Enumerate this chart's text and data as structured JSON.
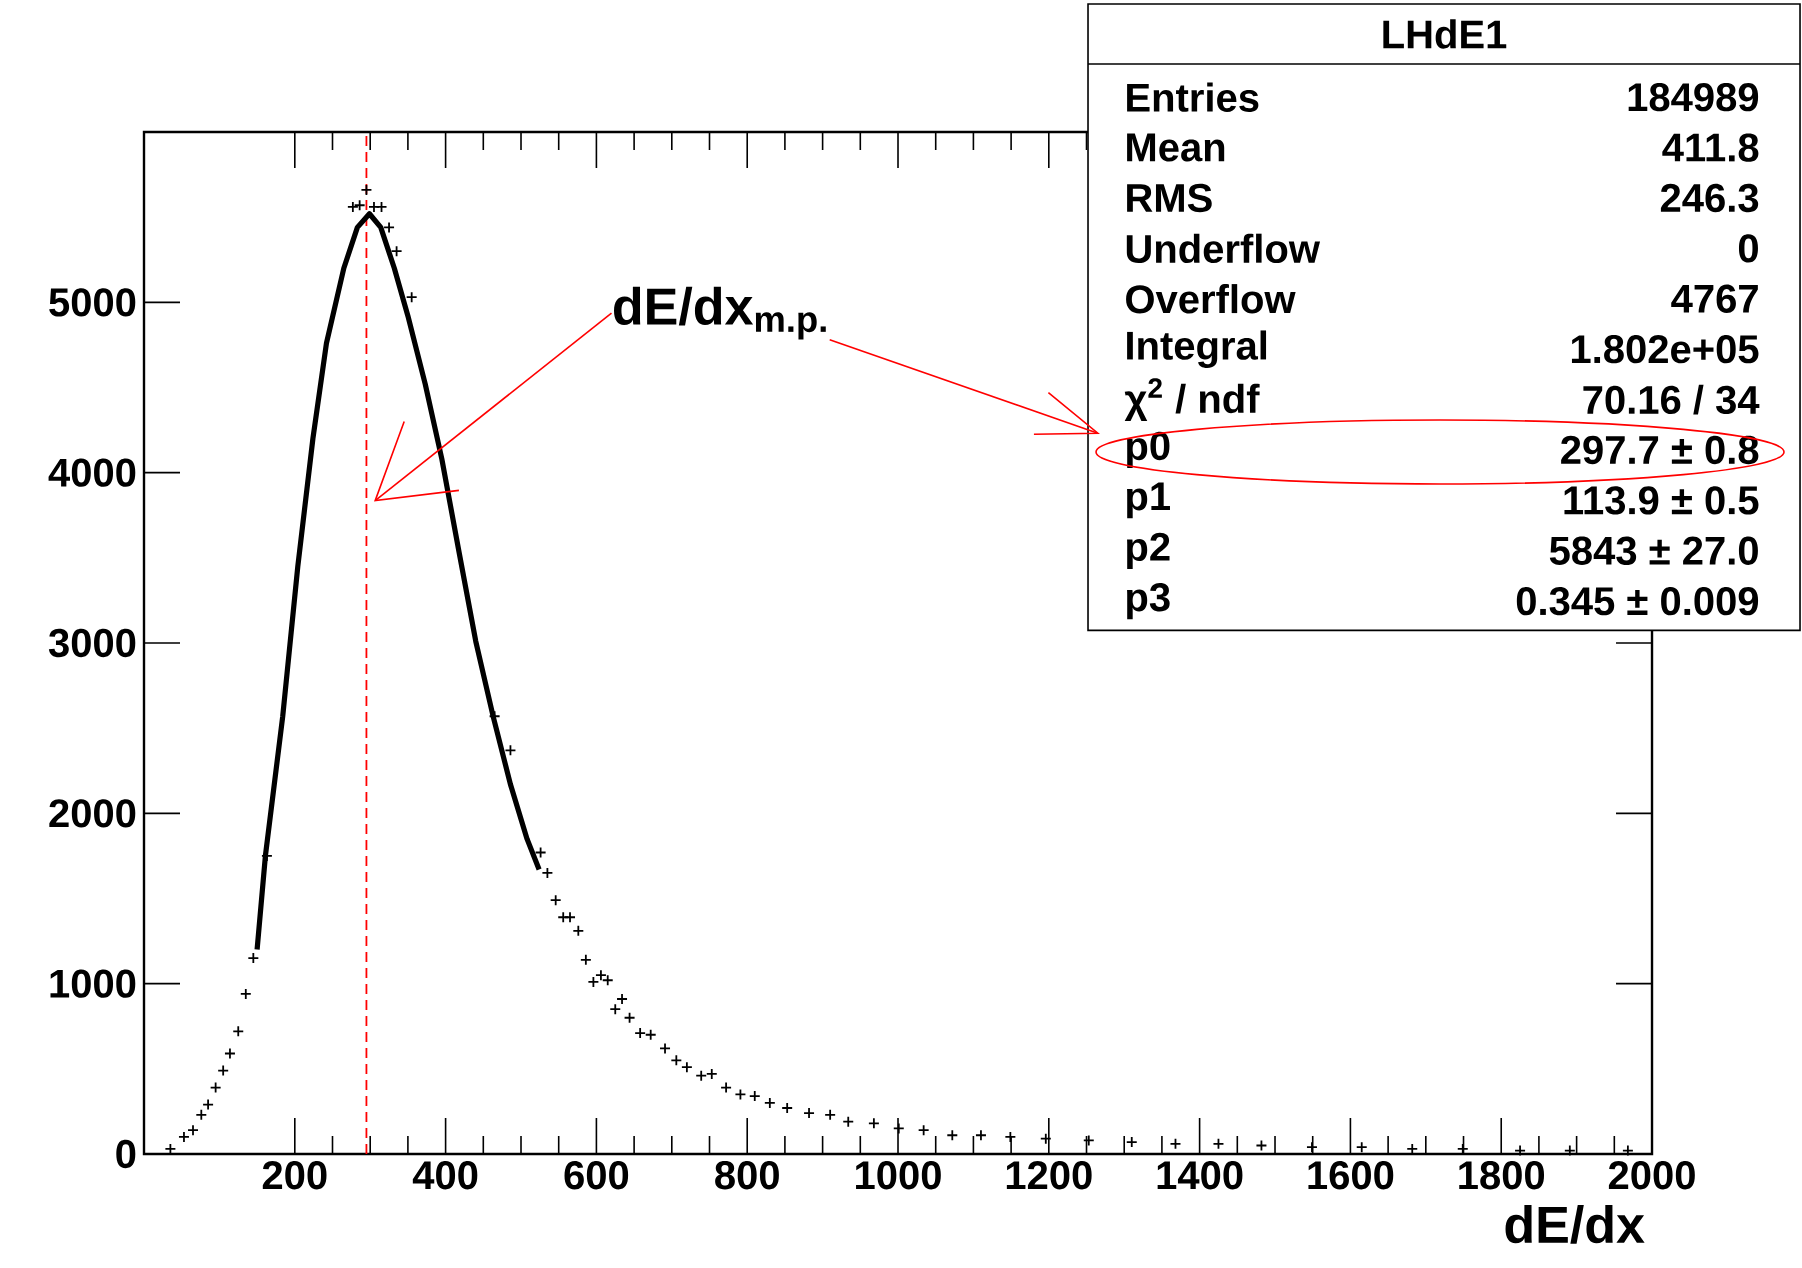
{
  "chart_data": {
    "type": "scatter",
    "xlabel": "dE/dx",
    "xlim": [
      0,
      2000
    ],
    "ylim": [
      0,
      6000
    ],
    "xticks": [
      200,
      400,
      600,
      800,
      1000,
      1200,
      1400,
      1600,
      1800,
      2000
    ],
    "yticks": [
      0,
      1000,
      2000,
      3000,
      4000,
      5000
    ],
    "ref_lines": [
      {
        "axis": "x",
        "value": 295,
        "color": "#ff0000",
        "line_style": "dashed"
      }
    ],
    "series": [
      {
        "color": "#000000",
        "marker": "cross",
        "x": [
          35,
          53,
          65,
          76,
          85,
          95,
          105,
          114,
          125,
          135,
          145,
          154,
          163,
          184,
          193,
          203,
          215,
          225,
          235,
          245,
          256,
          268,
          277,
          286,
          295,
          305,
          315,
          325,
          335,
          346,
          355,
          375,
          395,
          406,
          425,
          436,
          445,
          465,
          476,
          486,
          505,
          526,
          535,
          546,
          556,
          565,
          576,
          586,
          596,
          606,
          615,
          625,
          634,
          644,
          658,
          672,
          691,
          706,
          720,
          739,
          753,
          772,
          791,
          810,
          830,
          853,
          882,
          910,
          934,
          968,
          1001,
          1034,
          1072,
          1110,
          1149,
          1196,
          1253,
          1310,
          1368,
          1425,
          1482,
          1549,
          1615,
          1682,
          1749,
          1825,
          1891,
          1968
        ],
        "values": [
          30,
          100,
          140,
          230,
          290,
          390,
          490,
          590,
          720,
          940,
          1150,
          null,
          1750,
          null,
          null,
          null,
          null,
          null,
          null,
          null,
          null,
          null,
          5560,
          5570,
          5660,
          5560,
          5560,
          5440,
          5300,
          null,
          5030,
          null,
          null,
          null,
          null,
          null,
          null,
          2570,
          null,
          2370,
          null,
          1770,
          1650,
          1490,
          1390,
          1390,
          1310,
          1140,
          1010,
          1050,
          1020,
          850,
          910,
          800,
          710,
          700,
          620,
          550,
          510,
          460,
          470,
          390,
          350,
          340,
          300,
          270,
          240,
          230,
          190,
          180,
          150,
          140,
          110,
          110,
          100,
          90,
          80,
          70,
          60,
          60,
          50,
          40,
          40,
          30,
          30,
          20,
          20,
          20
        ]
      },
      {
        "type": "line",
        "color": "#000000",
        "marker": "none",
        "x": [
          150,
          161,
          184,
          204,
          224,
          242,
          265,
          283,
          299,
          314,
          332,
          350,
          373,
          395,
          418,
          440,
          463,
          486,
          508,
          524
        ],
        "values": [
          1200,
          1750,
          2570,
          3450,
          4200,
          4760,
          5200,
          5440,
          5520,
          5440,
          5200,
          4920,
          4520,
          4080,
          3530,
          3010,
          2570,
          2170,
          1850,
          1670
        ]
      }
    ],
    "annotations": [
      {
        "text": "dE/dx$_{m.p.}$",
        "x": 305,
        "y": 3830
      },
      "LHdE1",
      "Entries",
      "184989",
      "Mean",
      "411.8",
      "RMS",
      "246.3",
      "Underflow",
      "0",
      "Overflow",
      "4767",
      "Integral",
      "1.802e+05",
      "χ$^{2}$ / ndf",
      "70.16 / 34",
      "p0",
      "297.7 ± 0.8",
      "p1",
      "113.9 ± 0.5",
      "p2",
      "5843 ± 27.0",
      "p3",
      "0.345 ± 0.009"
    ]
  }
}
